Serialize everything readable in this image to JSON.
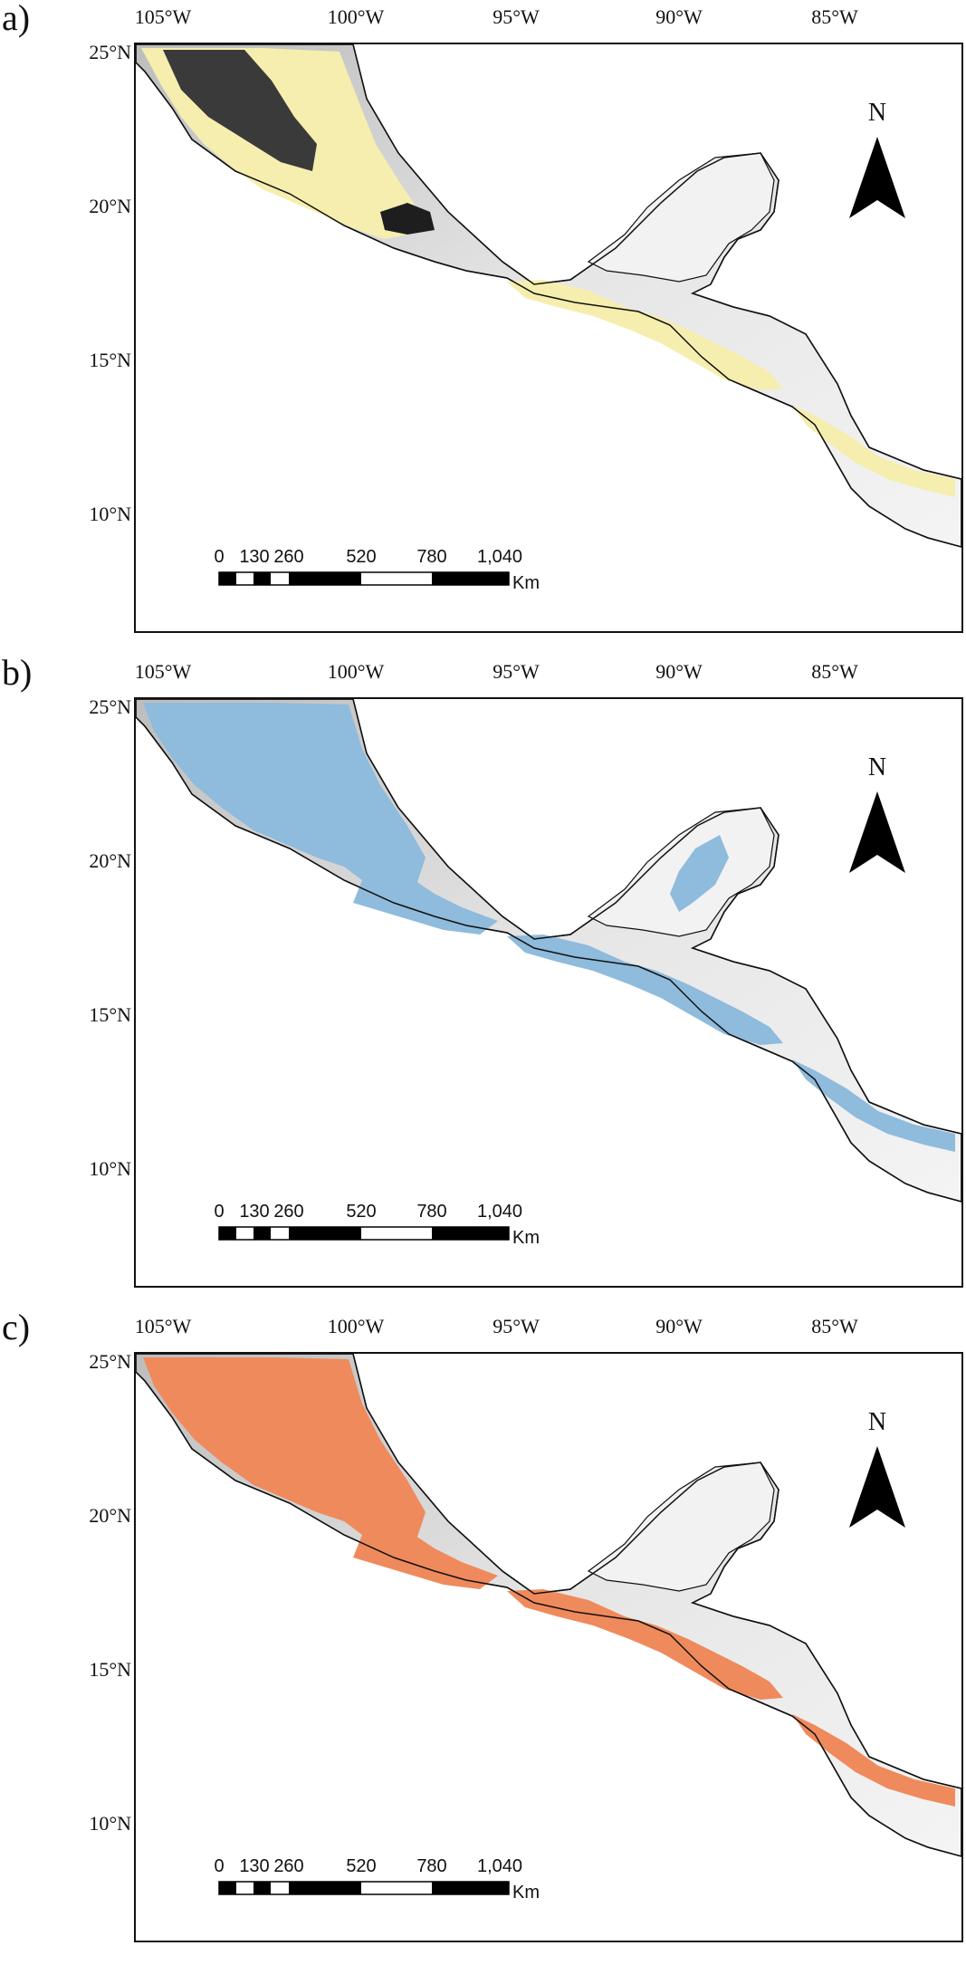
{
  "panels": [
    {
      "letter": "a)",
      "fill": "#f6eeae",
      "mode": "a"
    },
    {
      "letter": "b)",
      "fill": "#8fbbdc",
      "mode": "b"
    },
    {
      "letter": "c)",
      "fill": "#ef8a5c",
      "mode": "c"
    }
  ],
  "longitude_labels": [
    "105°W",
    "100°W",
    "95°W",
    "90°W",
    "85°W"
  ],
  "latitude_labels": [
    "25°N",
    "20°N",
    "15°N",
    "10°N"
  ],
  "north_label": "N",
  "scale_bar": {
    "ticks": [
      "0",
      "130",
      "260",
      "520",
      "780",
      "1,040"
    ],
    "unit": "Km"
  },
  "colors": {
    "coastline": "#111111",
    "terrain_light": "#e6e6e6",
    "terrain_mid": "#bdbdbd",
    "terrain_dark": "#3a3a3a"
  }
}
